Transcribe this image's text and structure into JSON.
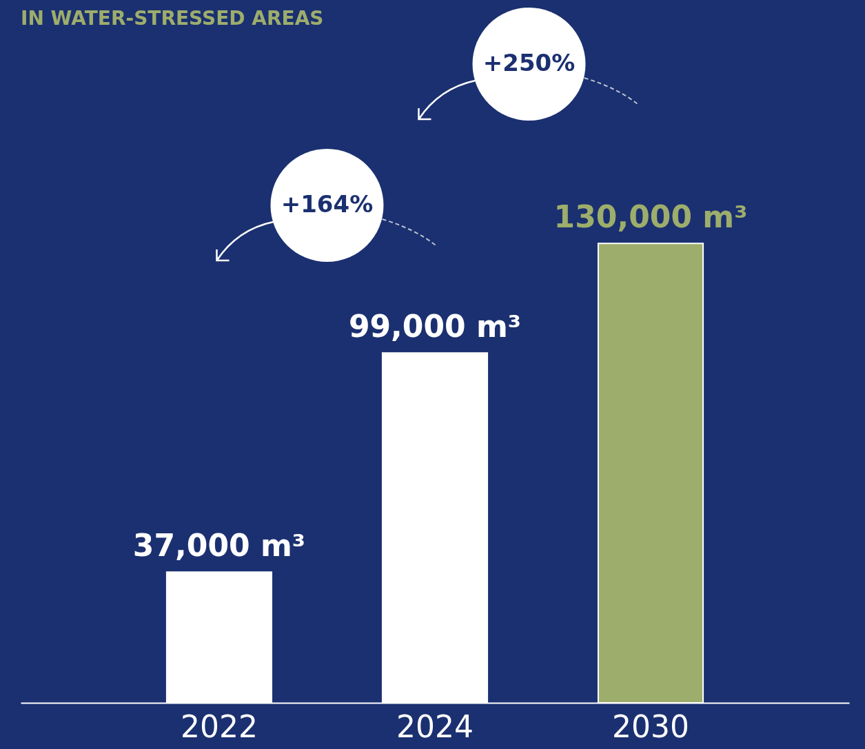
{
  "chart_data": {
    "type": "bar",
    "title": "IN WATER-STRESSED AREAS",
    "categories": [
      "2022",
      "2024",
      "2030"
    ],
    "values": [
      37000,
      99000,
      130000
    ],
    "colors": [
      "#ffffff",
      "#ffffff",
      "#9dad6c"
    ],
    "value_labels": [
      "37,000 m³",
      "99,000 m³",
      "130,000 m³"
    ],
    "annotations": [
      "+164%",
      "+250%"
    ]
  }
}
